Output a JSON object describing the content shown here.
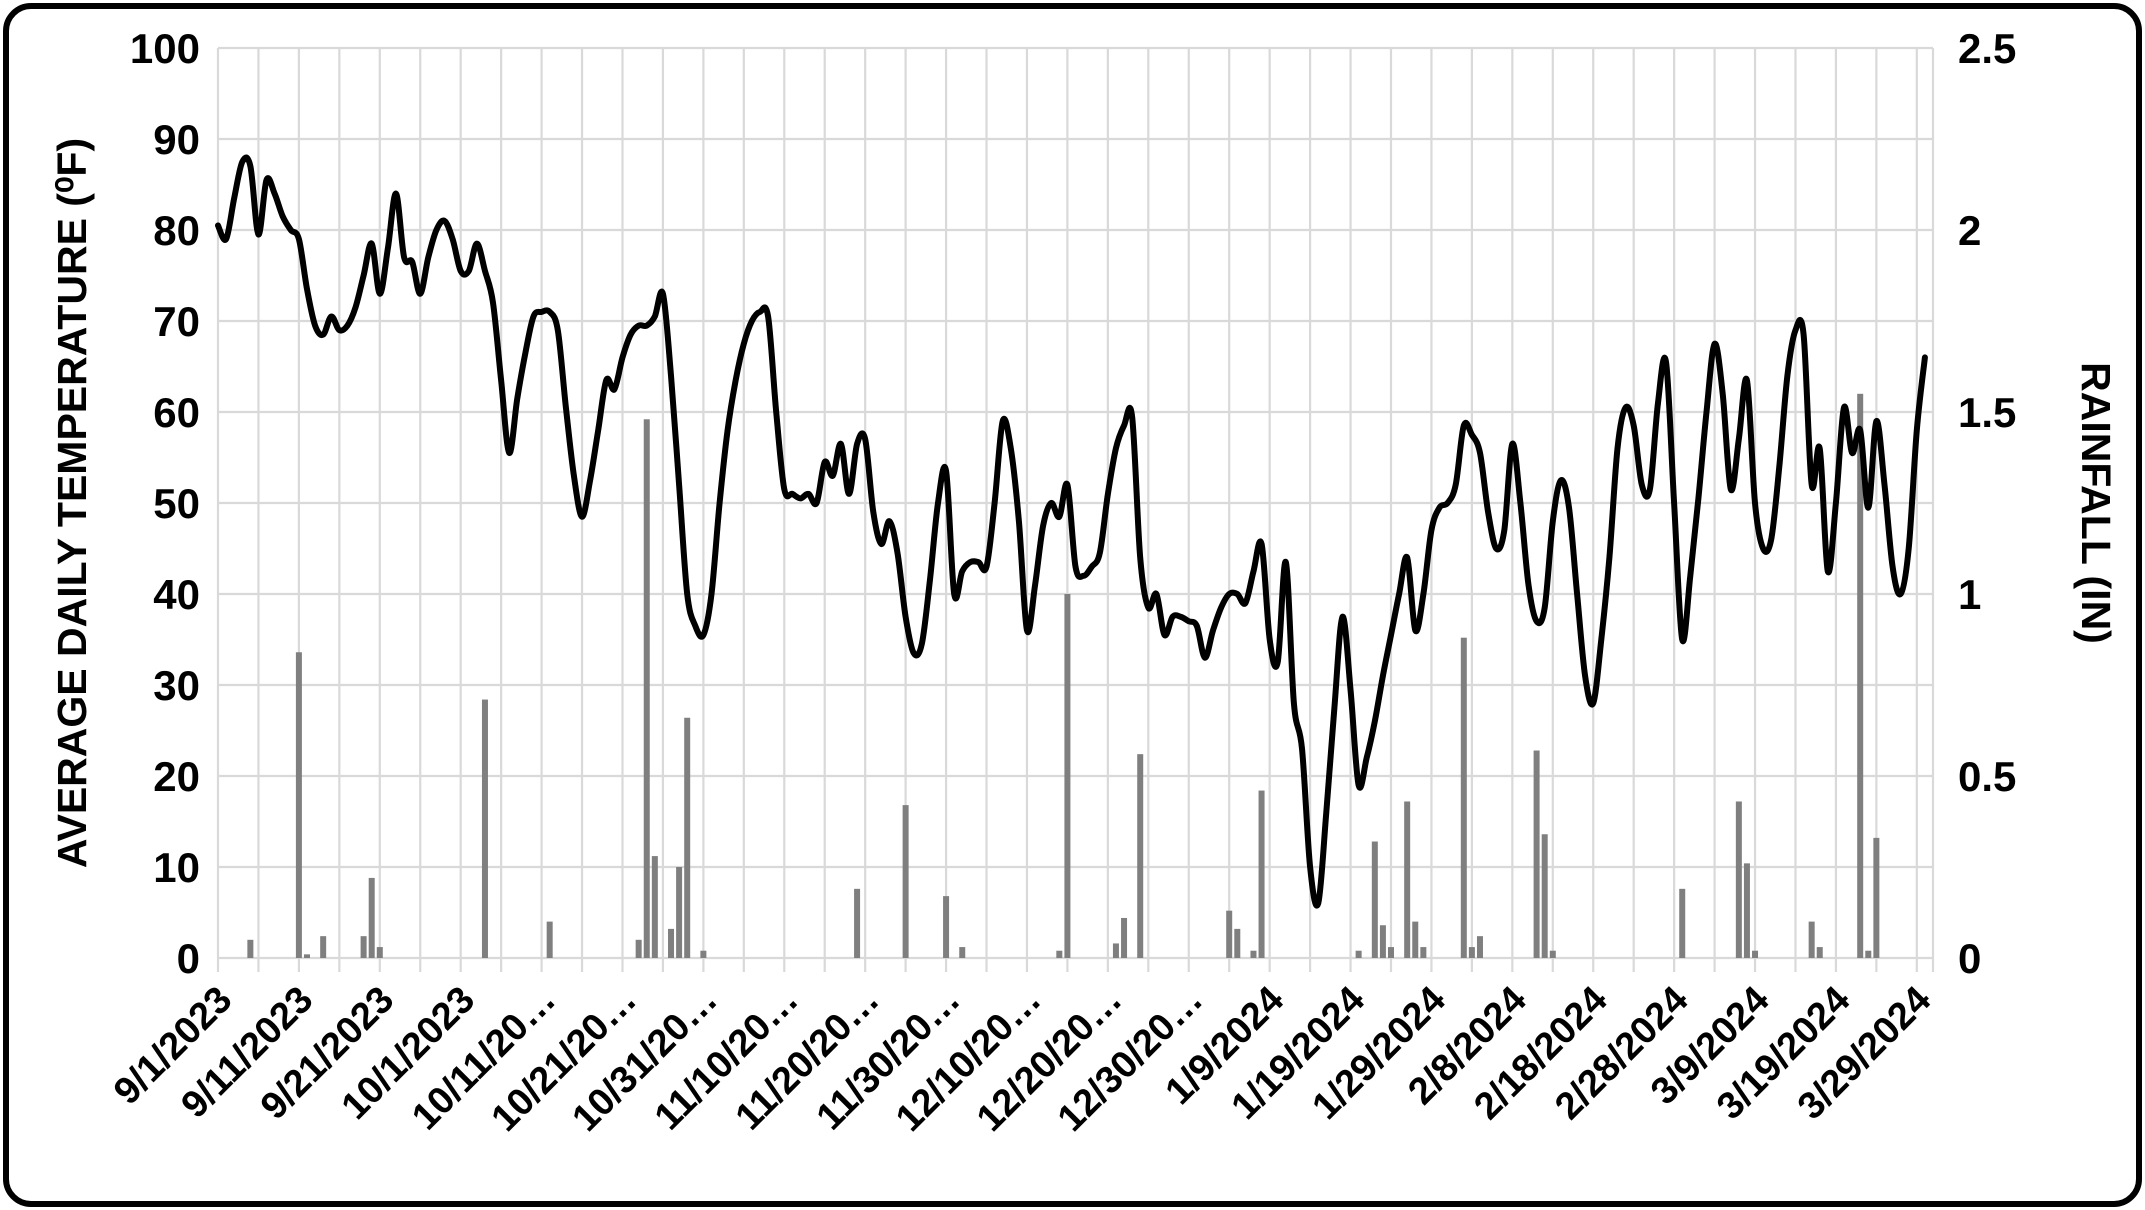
{
  "chart_data": {
    "type": "combo",
    "title": "",
    "legend_position": "none",
    "grid": true,
    "left_axis": {
      "title": "AVERAGE DAILY TEMPERATURE (⁰F)",
      "min": 0,
      "max": 100,
      "ticks": [
        0,
        10,
        20,
        30,
        40,
        50,
        60,
        70,
        80,
        90,
        100
      ]
    },
    "right_axis": {
      "title": "RAINFALL (IN)",
      "min": 0,
      "max": 2.5,
      "ticks": [
        0,
        0.5,
        1,
        1.5,
        2,
        2.5
      ]
    },
    "x_tick_labels": [
      "9/1/2023",
      "9/11/2023",
      "9/21/2023",
      "10/1/2023",
      "10/11/20…",
      "10/21/20…",
      "10/31/20…",
      "11/10/20…",
      "11/20/20…",
      "11/30/20…",
      "12/10/20…",
      "12/20/20…",
      "12/30/20…",
      "1/9/2024",
      "1/19/2024",
      "1/29/2024",
      "2/8/2024",
      "2/18/2024",
      "2/28/2024",
      "3/9/2024",
      "3/19/2024",
      "3/29/2024"
    ],
    "x_tick_step_days": 10,
    "gridline_step_days": 5,
    "colors": {
      "line": "#000000",
      "bar": "#7F7F7F",
      "grid": "#D9D9D9",
      "frame": "#000000",
      "background": "#FFFFFF"
    },
    "x": [
      "9/1/2023",
      "9/2/2023",
      "9/3/2023",
      "9/4/2023",
      "9/5/2023",
      "9/6/2023",
      "9/7/2023",
      "9/8/2023",
      "9/9/2023",
      "9/10/2023",
      "9/11/2023",
      "9/12/2023",
      "9/13/2023",
      "9/14/2023",
      "9/15/2023",
      "9/16/2023",
      "9/17/2023",
      "9/18/2023",
      "9/19/2023",
      "9/20/2023",
      "9/21/2023",
      "9/22/2023",
      "9/23/2023",
      "9/24/2023",
      "9/25/2023",
      "9/26/2023",
      "9/27/2023",
      "9/28/2023",
      "9/29/2023",
      "9/30/2023",
      "10/1/2023",
      "10/2/2023",
      "10/3/2023",
      "10/4/2023",
      "10/5/2023",
      "10/6/2023",
      "10/7/2023",
      "10/8/2023",
      "10/9/2023",
      "10/10/2023",
      "10/11/2023",
      "10/12/2023",
      "10/13/2023",
      "10/14/2023",
      "10/15/2023",
      "10/16/2023",
      "10/17/2023",
      "10/18/2023",
      "10/19/2023",
      "10/20/2023",
      "10/21/2023",
      "10/22/2023",
      "10/23/2023",
      "10/24/2023",
      "10/25/2023",
      "10/26/2023",
      "10/27/2023",
      "10/28/2023",
      "10/29/2023",
      "10/30/2023",
      "10/31/2023",
      "11/1/2023",
      "11/2/2023",
      "11/3/2023",
      "11/4/2023",
      "11/5/2023",
      "11/6/2023",
      "11/7/2023",
      "11/8/2023",
      "11/9/2023",
      "11/10/2023",
      "11/11/2023",
      "11/12/2023",
      "11/13/2023",
      "11/14/2023",
      "11/15/2023",
      "11/16/2023",
      "11/17/2023",
      "11/18/2023",
      "11/19/2023",
      "11/20/2023",
      "11/21/2023",
      "11/22/2023",
      "11/23/2023",
      "11/24/2023",
      "11/25/2023",
      "11/26/2023",
      "11/27/2023",
      "11/28/2023",
      "11/29/2023",
      "11/30/2023",
      "12/1/2023",
      "12/2/2023",
      "12/3/2023",
      "12/4/2023",
      "12/5/2023",
      "12/6/2023",
      "12/7/2023",
      "12/8/2023",
      "12/9/2023",
      "12/10/2023",
      "12/11/2023",
      "12/12/2023",
      "12/13/2023",
      "12/14/2023",
      "12/15/2023",
      "12/16/2023",
      "12/17/2023",
      "12/18/2023",
      "12/19/2023",
      "12/20/2023",
      "12/21/2023",
      "12/22/2023",
      "12/23/2023",
      "12/24/2023",
      "12/25/2023",
      "12/26/2023",
      "12/27/2023",
      "12/28/2023",
      "12/29/2023",
      "12/30/2023",
      "12/31/2023",
      "1/1/2024",
      "1/2/2024",
      "1/3/2024",
      "1/4/2024",
      "1/5/2024",
      "1/6/2024",
      "1/7/2024",
      "1/8/2024",
      "1/9/2024",
      "1/10/2024",
      "1/11/2024",
      "1/12/2024",
      "1/13/2024",
      "1/14/2024",
      "1/15/2024",
      "1/16/2024",
      "1/17/2024",
      "1/18/2024",
      "1/19/2024",
      "1/20/2024",
      "1/21/2024",
      "1/22/2024",
      "1/23/2024",
      "1/24/2024",
      "1/25/2024",
      "1/26/2024",
      "1/27/2024",
      "1/28/2024",
      "1/29/2024",
      "1/30/2024",
      "1/31/2024",
      "2/1/2024",
      "2/2/2024",
      "2/3/2024",
      "2/4/2024",
      "2/5/2024",
      "2/6/2024",
      "2/7/2024",
      "2/8/2024",
      "2/9/2024",
      "2/10/2024",
      "2/11/2024",
      "2/12/2024",
      "2/13/2024",
      "2/14/2024",
      "2/15/2024",
      "2/16/2024",
      "2/17/2024",
      "2/18/2024",
      "2/19/2024",
      "2/20/2024",
      "2/21/2024",
      "2/22/2024",
      "2/23/2024",
      "2/24/2024",
      "2/25/2024",
      "2/26/2024",
      "2/27/2024",
      "2/28/2024",
      "2/29/2024",
      "3/1/2024",
      "3/2/2024",
      "3/3/2024",
      "3/4/2024",
      "3/5/2024",
      "3/6/2024",
      "3/7/2024",
      "3/8/2024",
      "3/9/2024",
      "3/10/2024",
      "3/11/2024",
      "3/12/2024",
      "3/13/2024",
      "3/14/2024",
      "3/15/2024",
      "3/16/2024",
      "3/17/2024",
      "3/18/2024",
      "3/19/2024",
      "3/20/2024",
      "3/21/2024",
      "3/22/2024",
      "3/23/2024",
      "3/24/2024",
      "3/25/2024",
      "3/26/2024",
      "3/27/2024",
      "3/28/2024",
      "3/29/2024",
      "3/30/2024"
    ],
    "series": [
      {
        "name": "Average Daily Temperature",
        "type": "line",
        "axis": "left",
        "color": "#000000",
        "values": [
          80.5,
          79,
          83.5,
          87.5,
          87,
          79.5,
          85.5,
          84,
          81.5,
          80,
          79,
          73.5,
          69.5,
          68.5,
          70.5,
          69,
          69.5,
          71.5,
          75,
          78.5,
          73,
          78,
          84,
          77,
          76.5,
          73,
          77,
          80,
          81,
          79,
          75.5,
          75.5,
          78.5,
          75.5,
          72,
          63.5,
          55.5,
          61.5,
          66.5,
          70.5,
          71,
          71,
          69,
          60.5,
          53,
          48.5,
          52.5,
          58,
          63.5,
          62.5,
          66,
          68.5,
          69.5,
          69.5,
          70.5,
          73,
          64,
          52,
          40,
          36.5,
          35.5,
          40,
          50,
          58,
          63.5,
          67.5,
          70,
          71,
          70.5,
          60,
          51.5,
          51,
          50.5,
          51,
          50,
          54.5,
          53,
          56.5,
          51,
          56.5,
          57,
          49,
          45.5,
          48,
          44.5,
          37.5,
          33.5,
          34.5,
          41.5,
          50,
          53.5,
          40,
          42.5,
          43.5,
          43.5,
          43,
          50,
          59,
          56,
          48,
          36,
          41,
          47.5,
          50,
          48.5,
          52,
          43,
          42,
          43,
          44.5,
          51,
          56,
          58.5,
          59.5,
          44,
          38.5,
          40,
          35.5,
          37.5,
          37.5,
          37,
          36.5,
          33,
          36,
          38.5,
          40,
          40,
          39,
          42.5,
          45.5,
          35,
          32.5,
          43.5,
          28,
          23,
          10,
          6,
          16,
          27.5,
          37.5,
          29.5,
          19,
          22,
          26,
          31,
          35.5,
          40,
          44,
          36,
          40,
          47,
          49.5,
          50,
          52,
          58.5,
          57.5,
          55.5,
          49,
          45,
          47,
          56.5,
          50,
          41,
          37,
          38.5,
          48,
          52.5,
          49.5,
          40,
          31,
          28,
          35,
          44,
          56,
          60.5,
          58.5,
          52,
          51.5,
          61,
          65.5,
          50,
          35,
          42,
          50.5,
          60,
          67.5,
          62,
          51.5,
          57,
          63.5,
          50,
          45,
          46,
          54,
          64,
          69,
          68.5,
          52,
          56,
          42.5,
          50,
          60.5,
          55.5,
          58,
          49.5,
          59,
          52,
          43,
          40,
          45,
          58,
          66
        ]
      },
      {
        "name": "Rainfall",
        "type": "bar",
        "axis": "right",
        "color": "#7F7F7F",
        "values": [
          0,
          0,
          0,
          0,
          0.05,
          0,
          0,
          0,
          0,
          0,
          0.84,
          0.01,
          0,
          0.06,
          0,
          0,
          0,
          0,
          0.06,
          0.22,
          0.03,
          0,
          0,
          0,
          0,
          0,
          0,
          0,
          0,
          0,
          0,
          0,
          0,
          0.71,
          0,
          0,
          0,
          0,
          0,
          0,
          0,
          0.1,
          0,
          0,
          0,
          0,
          0,
          0,
          0,
          0,
          0,
          0,
          0.05,
          1.48,
          0.28,
          0,
          0.08,
          0.25,
          0.66,
          0,
          0.02,
          0,
          0,
          0,
          0,
          0,
          0,
          0,
          0,
          0,
          0,
          0,
          0,
          0,
          0,
          0,
          0,
          0,
          0,
          0.19,
          0,
          0,
          0,
          0,
          0,
          0.42,
          0,
          0,
          0,
          0,
          0.17,
          0,
          0.03,
          0,
          0,
          0,
          0,
          0,
          0,
          0,
          0,
          0,
          0,
          0,
          0.02,
          1.0,
          0,
          0,
          0,
          0,
          0,
          0.04,
          0.11,
          0,
          0.56,
          0,
          0,
          0,
          0,
          0,
          0,
          0,
          0,
          0,
          0,
          0.13,
          0.08,
          0,
          0.02,
          0.46,
          0,
          0,
          0,
          0,
          0,
          0,
          0,
          0,
          0,
          0,
          0,
          0.02,
          0,
          0.32,
          0.09,
          0.03,
          0,
          0.43,
          0.1,
          0.03,
          0,
          0,
          0,
          0,
          0.88,
          0.03,
          0.06,
          0,
          0,
          0,
          0,
          0,
          0,
          0.57,
          0.34,
          0.02,
          0,
          0,
          0,
          0,
          0,
          0,
          0,
          0,
          0,
          0,
          0,
          0,
          0,
          0,
          0,
          0.19,
          0,
          0,
          0,
          0,
          0,
          0,
          0.43,
          0.26,
          0.02,
          0,
          0,
          0,
          0,
          0,
          0,
          0.1,
          0.03,
          0,
          0,
          0,
          0,
          1.55,
          0.02,
          0.33,
          0,
          0,
          0,
          0,
          0,
          0
        ]
      }
    ]
  }
}
